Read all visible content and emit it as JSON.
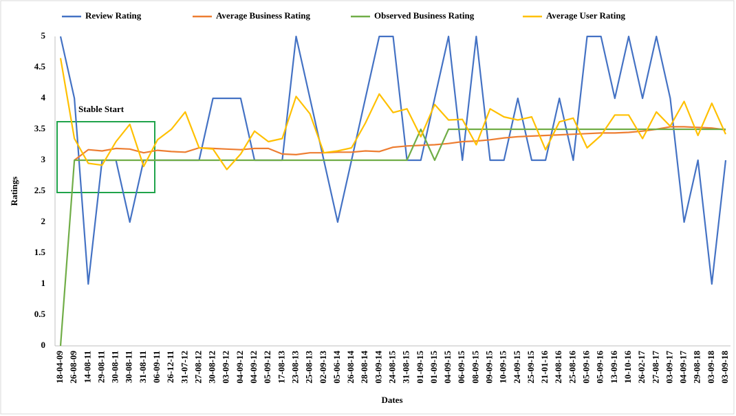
{
  "chart_data": {
    "type": "line",
    "x_label": "Dates",
    "y_label": "Ratings",
    "categories": [
      "18-04-09",
      "26-08-09",
      "14-08-11",
      "29-08-11",
      "30-08-11",
      "30-08-11",
      "31-08-11",
      "06-09-11",
      "26-12-11",
      "31-07-12",
      "27-08-12",
      "30-08-12",
      "03-09-12",
      "04-09-12",
      "04-09-12",
      "05-09-12",
      "17-08-13",
      "23-08-13",
      "25-08-13",
      "02-09-13",
      "05-06-14",
      "26-08-14",
      "28-08-14",
      "03-09-14",
      "24-08-15",
      "31-08-15",
      "01-09-15",
      "01-09-15",
      "04-09-15",
      "06-09-15",
      "08-09-15",
      "09-09-15",
      "10-09-15",
      "24-09-15",
      "25-09-15",
      "21-01-16",
      "24-08-16",
      "25-08-16",
      "05-09-16",
      "05-09-16",
      "13-09-16",
      "10-10-16",
      "26-02-17",
      "27-08-17",
      "03-09-17",
      "04-09-17",
      "29-08-18",
      "03-09-18",
      "03-09-18"
    ],
    "series": [
      {
        "name": "Review Rating",
        "color": "#4472c4",
        "values": [
          5,
          4,
          1,
          3,
          3,
          2,
          3,
          3,
          3,
          3,
          3,
          4,
          4,
          4,
          3,
          3,
          3,
          5,
          4,
          3,
          2,
          3,
          4,
          5,
          5,
          3,
          3,
          4,
          5,
          3,
          5,
          3,
          3,
          4,
          3,
          3,
          4,
          3,
          5,
          5,
          4,
          5,
          4,
          5,
          4,
          2,
          3,
          1,
          3
        ]
      },
      {
        "name": "Average Business Rating",
        "color": "#ed7d31",
        "values": [
          null,
          3.0,
          3.17,
          3.15,
          3.19,
          3.18,
          3.12,
          3.16,
          3.14,
          3.13,
          3.2,
          3.19,
          3.18,
          3.17,
          3.19,
          3.19,
          3.1,
          3.09,
          3.12,
          3.12,
          3.13,
          3.13,
          3.15,
          3.14,
          3.21,
          3.23,
          3.24,
          3.25,
          3.27,
          3.3,
          3.31,
          3.33,
          3.36,
          3.38,
          3.39,
          3.4,
          3.41,
          3.42,
          3.43,
          3.44,
          3.44,
          3.45,
          3.47,
          3.5,
          3.54,
          3.54,
          3.53,
          3.52,
          3.49
        ]
      },
      {
        "name": "Observed Business Rating",
        "color": "#70ad47",
        "values": [
          0,
          3,
          3,
          3,
          3,
          3,
          3,
          3,
          3,
          3,
          3,
          3,
          3,
          3,
          3,
          3,
          3,
          3,
          3,
          3,
          3,
          3,
          3,
          3,
          3,
          3,
          3.5,
          3,
          3.5,
          3.5,
          3.5,
          3.5,
          3.5,
          3.5,
          3.5,
          3.5,
          3.5,
          3.5,
          3.5,
          3.5,
          3.5,
          3.5,
          3.5,
          3.5,
          3.5,
          3.5,
          3.5,
          3.5,
          3.5
        ]
      },
      {
        "name": "Average User Rating",
        "color": "#ffc000",
        "values": [
          4.65,
          3.35,
          2.95,
          2.92,
          3.3,
          3.58,
          2.9,
          3.33,
          3.5,
          3.78,
          3.2,
          3.18,
          2.85,
          3.1,
          3.47,
          3.3,
          3.35,
          4.03,
          3.75,
          3.12,
          3.15,
          3.2,
          3.6,
          4.07,
          3.77,
          3.83,
          3.38,
          3.9,
          3.65,
          3.66,
          3.25,
          3.83,
          3.7,
          3.65,
          3.7,
          3.17,
          3.62,
          3.68,
          3.2,
          3.4,
          3.73,
          3.73,
          3.35,
          3.78,
          3.55,
          3.95,
          3.4,
          3.92,
          3.42
        ]
      }
    ],
    "annotation": "Stable Start",
    "annotation_color": "#1fa34a",
    "ylim": [
      0,
      5
    ],
    "yticks": [
      0,
      0.5,
      1,
      1.5,
      2,
      2.5,
      3,
      3.5,
      4,
      4.5,
      5
    ],
    "grid": false,
    "legend": "top"
  }
}
